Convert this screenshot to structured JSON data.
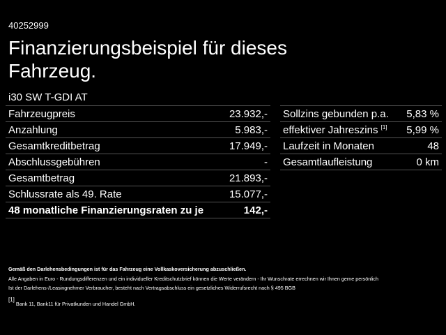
{
  "id": "40252999",
  "title": "Finanzierungsbeispiel für dieses Fahrzeug.",
  "model": "i30 SW T-GDI AT",
  "left_rows": [
    {
      "label": "Fahrzeugpreis",
      "value": "23.932,-"
    },
    {
      "label": "Anzahlung",
      "value": "5.983,-"
    },
    {
      "label": "Gesamtkreditbetrag",
      "value": "17.949,-"
    },
    {
      "label": "Abschlussgebühren",
      "value": "-"
    },
    {
      "label": "Gesamtbetrag",
      "value": "21.893,-"
    },
    {
      "label": "Schlussrate als 49. Rate",
      "value": "15.077,-"
    },
    {
      "label": "48 monatliche Finanzierungsraten zu je",
      "value": "142,-"
    }
  ],
  "right_rows": [
    {
      "label": "Sollzins gebunden p.a.",
      "value": "5,83 %"
    },
    {
      "label": "effektiver Jahreszins",
      "sup": "[1]",
      "value": "5,99 %"
    },
    {
      "label": "Laufzeit in Monaten",
      "value": "48"
    },
    {
      "label": "Gesamtlaufleistung",
      "value": "0 km"
    }
  ],
  "notes": {
    "bold": "Gemäß den Darlehensbedingungen ist für das Fahrzeug eine Vollkaskoversicherung abzuschließen.",
    "line1": "Alle Angaben in Euro - Rundungsdifferenzen und ein individueller Kreditschutzbrief können die Werte verändern - Ihr Wunschrate errechnen wir Ihnen gerne persönlich",
    "line2": "Ist der Darlehens-/Leasingnehmer Verbraucher, besteht nach Vertragsabschluss ein gesetzliches Widerrufsrecht nach § 495 BGB",
    "footnote_mark": "[1]",
    "footnote": "Bank 11, Bank11 für Privatkunden und Handel GmbH."
  }
}
